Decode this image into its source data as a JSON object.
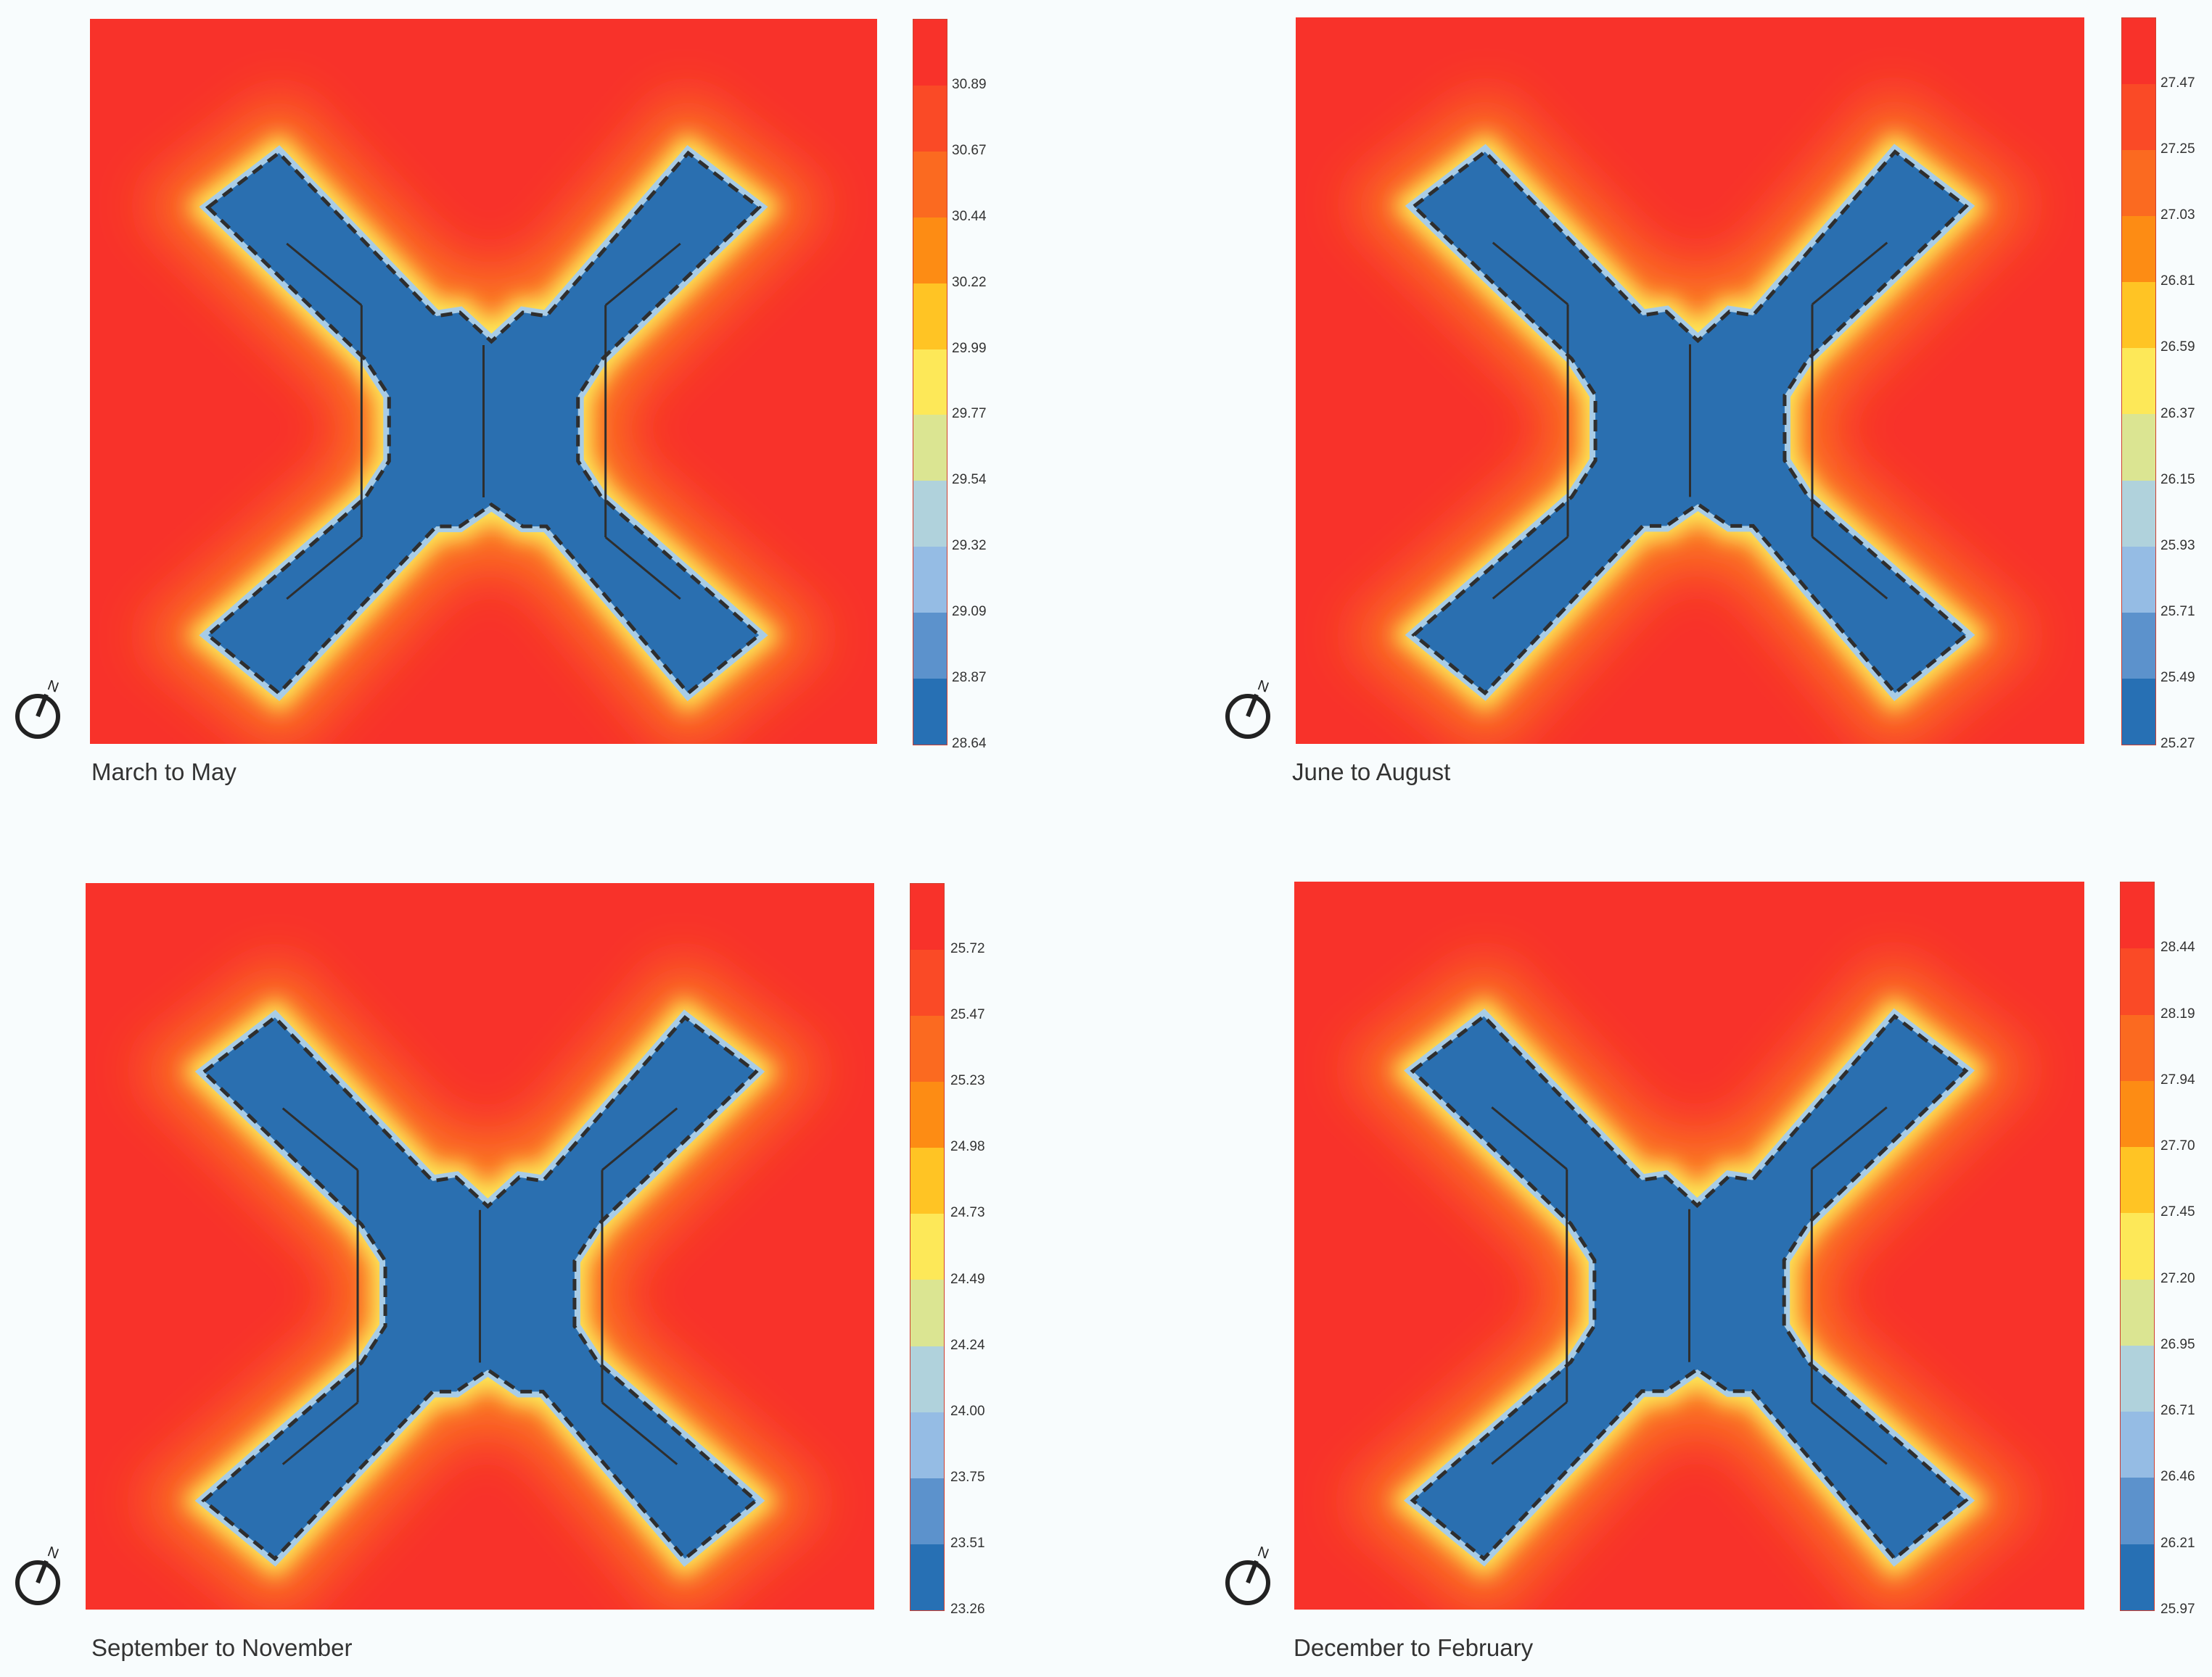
{
  "panels": [
    {
      "id": "march-may",
      "caption": "March to May",
      "legend_ticks": [
        "30.89",
        "30.67",
        "30.44",
        "30.22",
        "29.99",
        "29.77",
        "29.54",
        "29.32",
        "29.09",
        "28.87",
        "28.64"
      ]
    },
    {
      "id": "june-august",
      "caption": "June to August",
      "legend_ticks": [
        "27.47",
        "27.25",
        "27.03",
        "26.81",
        "26.59",
        "26.37",
        "26.15",
        "25.93",
        "25.71",
        "25.49",
        "25.27"
      ]
    },
    {
      "id": "september-november",
      "caption": "September to November",
      "legend_ticks": [
        "25.72",
        "25.47",
        "25.23",
        "24.98",
        "24.73",
        "24.49",
        "24.24",
        "24.00",
        "23.75",
        "23.51",
        "23.26"
      ]
    },
    {
      "id": "december-february",
      "caption": "December to February",
      "legend_ticks": [
        "28.44",
        "28.19",
        "27.94",
        "27.70",
        "27.45",
        "27.20",
        "26.95",
        "26.71",
        "26.46",
        "26.21",
        "25.97"
      ]
    }
  ],
  "legend_colors": [
    "#f8322a",
    "#fa4a26",
    "#fb6a20",
    "#fd8c14",
    "#ffc424",
    "#fde858",
    "#dbe592",
    "#b0d2dc",
    "#95bce4",
    "#5c92cc",
    "#2770b4"
  ],
  "compass_label": "N",
  "colors": {
    "hot": "#f8322a",
    "warm": "#fb7a22",
    "yellow": "#fde858",
    "light_blue": "#a8cce6",
    "building": "#2a6fb0",
    "outline": "#2e2e2e"
  }
}
